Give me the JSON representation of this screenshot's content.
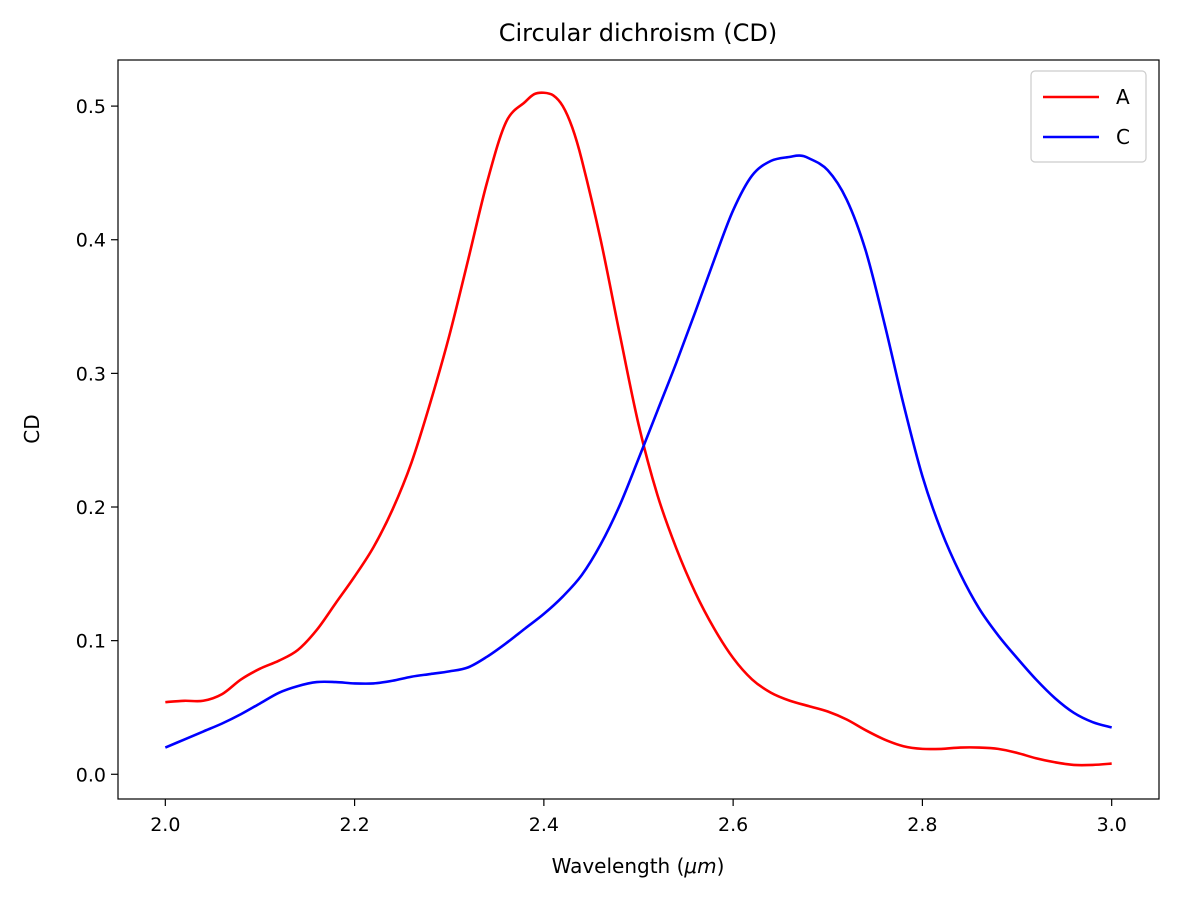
{
  "chart_data": {
    "type": "line",
    "title": "Circular dichroism (CD)",
    "xlabel_prefix": "Wavelength (",
    "xlabel_math": "μm",
    "xlabel_suffix": ")",
    "ylabel": "CD",
    "xlim": [
      1.95,
      3.05
    ],
    "ylim": [
      -0.0185,
      0.5345
    ],
    "x_ticks": [
      2.0,
      2.2,
      2.4,
      2.6,
      2.8,
      3.0
    ],
    "x_tick_labels": [
      "2.0",
      "2.2",
      "2.4",
      "2.6",
      "2.8",
      "3.0"
    ],
    "y_ticks": [
      0.0,
      0.1,
      0.2,
      0.3,
      0.4,
      0.5
    ],
    "y_tick_labels": [
      "0.0",
      "0.1",
      "0.2",
      "0.3",
      "0.4",
      "0.5"
    ],
    "grid": false,
    "legend_position": "upper right",
    "series": [
      {
        "name": "A",
        "color": "#ff0000",
        "points": [
          [
            2.0,
            0.054
          ],
          [
            2.02,
            0.055
          ],
          [
            2.04,
            0.055
          ],
          [
            2.06,
            0.06
          ],
          [
            2.08,
            0.071
          ],
          [
            2.1,
            0.079
          ],
          [
            2.12,
            0.085
          ],
          [
            2.14,
            0.093
          ],
          [
            2.16,
            0.108
          ],
          [
            2.18,
            0.128
          ],
          [
            2.2,
            0.148
          ],
          [
            2.22,
            0.17
          ],
          [
            2.24,
            0.198
          ],
          [
            2.26,
            0.233
          ],
          [
            2.28,
            0.278
          ],
          [
            2.3,
            0.328
          ],
          [
            2.32,
            0.385
          ],
          [
            2.34,
            0.443
          ],
          [
            2.36,
            0.488
          ],
          [
            2.38,
            0.503
          ],
          [
            2.39,
            0.509
          ],
          [
            2.4,
            0.51
          ],
          [
            2.41,
            0.508
          ],
          [
            2.42,
            0.5
          ],
          [
            2.43,
            0.484
          ],
          [
            2.44,
            0.46
          ],
          [
            2.46,
            0.4
          ],
          [
            2.48,
            0.33
          ],
          [
            2.5,
            0.262
          ],
          [
            2.52,
            0.209
          ],
          [
            2.54,
            0.169
          ],
          [
            2.56,
            0.136
          ],
          [
            2.58,
            0.109
          ],
          [
            2.6,
            0.087
          ],
          [
            2.62,
            0.071
          ],
          [
            2.64,
            0.061
          ],
          [
            2.66,
            0.055
          ],
          [
            2.68,
            0.051
          ],
          [
            2.7,
            0.047
          ],
          [
            2.72,
            0.041
          ],
          [
            2.74,
            0.033
          ],
          [
            2.76,
            0.026
          ],
          [
            2.78,
            0.021
          ],
          [
            2.8,
            0.019
          ],
          [
            2.82,
            0.019
          ],
          [
            2.84,
            0.02
          ],
          [
            2.86,
            0.02
          ],
          [
            2.88,
            0.019
          ],
          [
            2.9,
            0.016
          ],
          [
            2.92,
            0.012
          ],
          [
            2.94,
            0.009
          ],
          [
            2.96,
            0.007
          ],
          [
            2.98,
            0.007
          ],
          [
            3.0,
            0.008
          ]
        ]
      },
      {
        "name": "C",
        "color": "#0000ff",
        "points": [
          [
            2.0,
            0.02
          ],
          [
            2.02,
            0.026
          ],
          [
            2.04,
            0.032
          ],
          [
            2.06,
            0.038
          ],
          [
            2.08,
            0.045
          ],
          [
            2.1,
            0.053
          ],
          [
            2.12,
            0.061
          ],
          [
            2.14,
            0.066
          ],
          [
            2.16,
            0.069
          ],
          [
            2.18,
            0.069
          ],
          [
            2.2,
            0.068
          ],
          [
            2.22,
            0.068
          ],
          [
            2.24,
            0.07
          ],
          [
            2.26,
            0.073
          ],
          [
            2.28,
            0.075
          ],
          [
            2.3,
            0.077
          ],
          [
            2.32,
            0.08
          ],
          [
            2.34,
            0.088
          ],
          [
            2.36,
            0.098
          ],
          [
            2.38,
            0.109
          ],
          [
            2.4,
            0.12
          ],
          [
            2.42,
            0.133
          ],
          [
            2.44,
            0.149
          ],
          [
            2.46,
            0.172
          ],
          [
            2.48,
            0.201
          ],
          [
            2.5,
            0.236
          ],
          [
            2.52,
            0.272
          ],
          [
            2.54,
            0.308
          ],
          [
            2.56,
            0.346
          ],
          [
            2.58,
            0.385
          ],
          [
            2.6,
            0.422
          ],
          [
            2.62,
            0.448
          ],
          [
            2.64,
            0.459
          ],
          [
            2.66,
            0.462
          ],
          [
            2.67,
            0.463
          ],
          [
            2.68,
            0.461
          ],
          [
            2.7,
            0.452
          ],
          [
            2.72,
            0.43
          ],
          [
            2.74,
            0.392
          ],
          [
            2.76,
            0.337
          ],
          [
            2.78,
            0.277
          ],
          [
            2.8,
            0.223
          ],
          [
            2.82,
            0.182
          ],
          [
            2.84,
            0.15
          ],
          [
            2.86,
            0.124
          ],
          [
            2.88,
            0.104
          ],
          [
            2.9,
            0.087
          ],
          [
            2.92,
            0.071
          ],
          [
            2.94,
            0.057
          ],
          [
            2.96,
            0.046
          ],
          [
            2.98,
            0.039
          ],
          [
            3.0,
            0.035
          ]
        ]
      }
    ]
  }
}
